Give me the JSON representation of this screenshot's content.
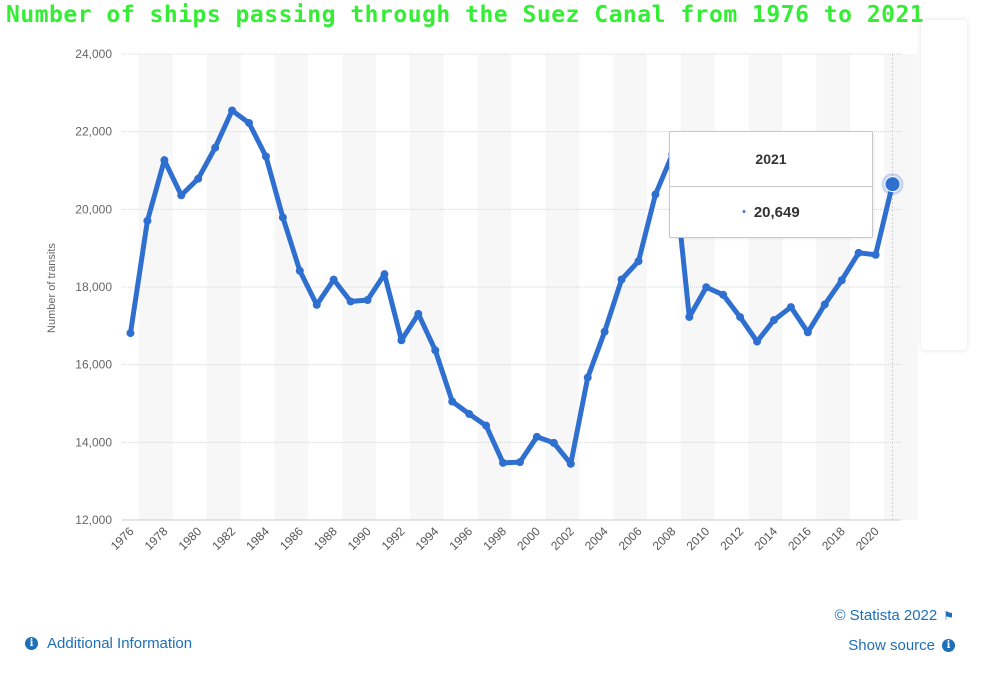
{
  "title": "Number of ships passing through the Suez Canal from 1976 to 2021",
  "tooltip": {
    "year": "2021",
    "value": "20,649",
    "dot": "•"
  },
  "footer": {
    "additional_info": "Additional Information",
    "copyright": "© Statista 2022",
    "show_source": "Show source",
    "info_icon": "i",
    "flag_icon": "⚑"
  },
  "colors": {
    "line": "#2e6fd0",
    "title": "#33ee33",
    "link": "#1d6fb8"
  },
  "chart_data": {
    "type": "line",
    "title": "Number of ships passing through the Suez Canal from 1976 to 2021",
    "xlabel": "",
    "ylabel": "Number of transits",
    "ylim": [
      12000,
      24000
    ],
    "yticks": [
      12000,
      14000,
      16000,
      18000,
      20000,
      22000,
      24000
    ],
    "ytick_labels": [
      "12,000",
      "14,000",
      "16,000",
      "18,000",
      "20,000",
      "22,000",
      "24,000"
    ],
    "xtick_labels": [
      "1976",
      "1978",
      "1980",
      "1982",
      "1984",
      "1986",
      "1988",
      "1990",
      "1992",
      "1994",
      "1996",
      "1998",
      "2000",
      "2002",
      "2004",
      "2006",
      "2008",
      "2010",
      "2012",
      "2014",
      "2016",
      "2018",
      "2020"
    ],
    "x": [
      1976,
      1977,
      1978,
      1979,
      1980,
      1981,
      1982,
      1983,
      1984,
      1985,
      1986,
      1987,
      1988,
      1989,
      1990,
      1991,
      1992,
      1993,
      1994,
      1995,
      1996,
      1997,
      1998,
      1999,
      2000,
      2001,
      2002,
      2003,
      2004,
      2005,
      2006,
      2007,
      2008,
      2009,
      2010,
      2011,
      2012,
      2013,
      2014,
      2015,
      2016,
      2017,
      2018,
      2019,
      2020,
      2021
    ],
    "series": [
      {
        "name": "Number of transits",
        "values": [
          16813,
          19703,
          21266,
          20363,
          20789,
          21587,
          22545,
          22224,
          21361,
          19791,
          18418,
          17541,
          18190,
          17628,
          17664,
          18330,
          16629,
          17305,
          16370,
          15051,
          14731,
          14430,
          13472,
          13490,
          14142,
          13986,
          13447,
          15667,
          16850,
          18193,
          18664,
          20384,
          21415,
          17228,
          17993,
          17799,
          17225,
          16596,
          17148,
          17483,
          16833,
          17550,
          18174,
          18880,
          18830,
          20649
        ]
      }
    ],
    "highlight": {
      "x": 2021,
      "value": 20649
    },
    "grid": true
  }
}
